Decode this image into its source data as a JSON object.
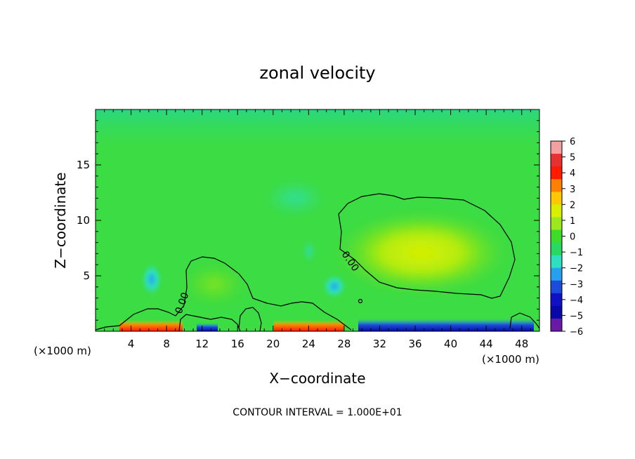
{
  "chart_data": {
    "type": "heatmap",
    "title": "zonal velocity",
    "xlabel": "X−coordinate",
    "ylabel": "Z−coordinate",
    "x_unit": "(×1000 m)",
    "z_unit": "(×1000 m)",
    "xlim": [
      0,
      50
    ],
    "ylim": [
      0,
      20
    ],
    "x_ticks": [
      "4",
      "8",
      "12",
      "16",
      "20",
      "24",
      "28",
      "32",
      "36",
      "40",
      "44",
      "48"
    ],
    "x_tick_values": [
      4,
      8,
      12,
      16,
      20,
      24,
      28,
      32,
      36,
      40,
      44,
      48
    ],
    "y_ticks": [
      "5",
      "10",
      "15"
    ],
    "y_tick_values": [
      5,
      10,
      15
    ],
    "colorbar": {
      "labels": [
        "6",
        "5",
        "4",
        "3",
        "2",
        "1",
        "0",
        "−1",
        "−2",
        "−3",
        "−4",
        "−5",
        "−6"
      ],
      "range": [
        -6,
        6
      ],
      "colors": [
        "#f4a0a0",
        "#e83030",
        "#ff1a00",
        "#ff8000",
        "#ffc800",
        "#d8f000",
        "#9ce81c",
        "#3cdc28",
        "#28d860",
        "#2ce0c0",
        "#28a0f0",
        "#1c4cdc",
        "#1010c8",
        "#0808a8",
        "#6a1aa8"
      ]
    },
    "contour_label": "0.00",
    "background_value": -0.5,
    "features": [
      {
        "name": "positive-core",
        "x": 36,
        "z": 8,
        "value": 1.5
      },
      {
        "name": "positive-lobe",
        "x": 13,
        "z": 4,
        "value": 0.4
      },
      {
        "name": "negative-patch",
        "x": 6,
        "z": 4.6,
        "value": -2.2
      },
      {
        "name": "negative-patch",
        "x": 27,
        "z": 3.8,
        "value": -2.8
      },
      {
        "name": "surface-positive",
        "x": 7,
        "z": 0.3,
        "value": 5
      },
      {
        "name": "surface-positive",
        "x": 25,
        "z": 0.3,
        "value": 5
      },
      {
        "name": "surface-negative",
        "x": 38,
        "z": 0.3,
        "value": -4.5
      }
    ],
    "footer": "CONTOUR INTERVAL = 1.000E+01"
  }
}
